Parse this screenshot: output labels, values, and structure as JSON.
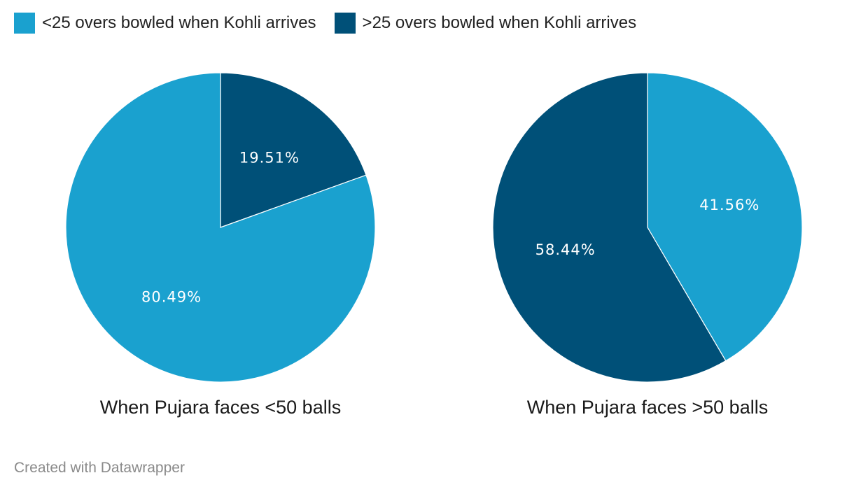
{
  "chart_data": {
    "type": "pie",
    "series_legend": [
      {
        "name": "<25 overs bowled when Kohli arrives",
        "color": "#1aa1cf"
      },
      {
        "name": ">25 overs bowled when Kohli arrives",
        "color": "#005078"
      }
    ],
    "charts": [
      {
        "title": "When Pujara faces <50 balls",
        "slices": [
          {
            "series": ">25 overs bowled when Kohli arrives",
            "value": 19.51,
            "label": "19.51%",
            "color": "#005078"
          },
          {
            "series": "<25 overs bowled when Kohli arrives",
            "value": 80.49,
            "label": "80.49%",
            "color": "#1aa1cf"
          }
        ]
      },
      {
        "title": "When Pujara faces >50 balls",
        "slices": [
          {
            "series": "<25 overs bowled when Kohli arrives",
            "value": 41.56,
            "label": "41.56%",
            "color": "#1aa1cf"
          },
          {
            "series": ">25 overs bowled when Kohli arrives",
            "value": 58.44,
            "label": "58.44%",
            "color": "#005078"
          }
        ]
      }
    ]
  },
  "footer": {
    "credit": "Created with Datawrapper"
  }
}
